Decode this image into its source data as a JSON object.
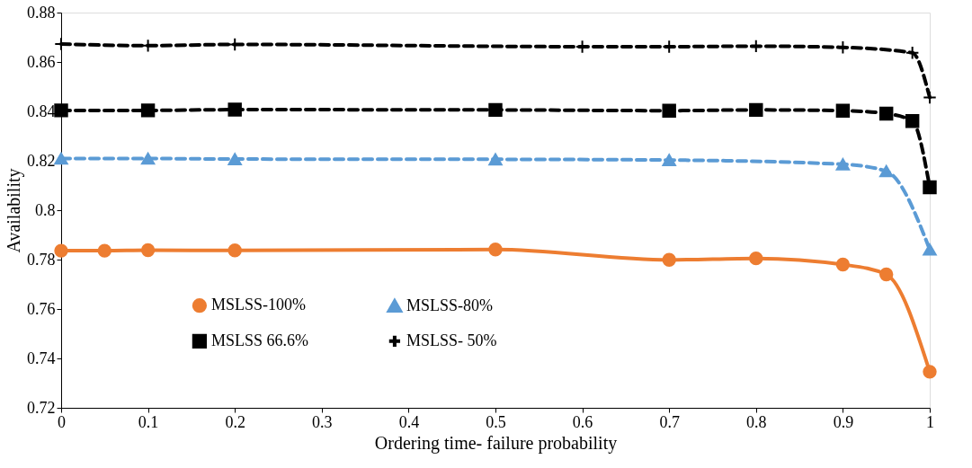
{
  "chart_data": {
    "type": "line",
    "xlabel": "Ordering time- failure probability",
    "ylabel": "Availability",
    "xlim": [
      0,
      1
    ],
    "xticks": [
      0,
      0.1,
      0.2,
      0.3,
      0.4,
      0.5,
      0.6,
      0.7,
      0.8,
      0.9,
      1
    ],
    "ylim": [
      0.72,
      0.88
    ],
    "yticks": [
      0.72,
      0.74,
      0.76,
      0.78,
      0.8,
      0.82,
      0.84,
      0.86,
      0.88
    ],
    "grid": false,
    "legend": "bottom",
    "series": [
      {
        "name": "MSLSS-100%",
        "color": "#ed7d31",
        "marker": "circle",
        "line_style": "solid",
        "x": [
          0,
          0.05,
          0.1,
          0.2,
          0.5,
          0.7,
          0.8,
          0.9,
          0.95,
          1
        ],
        "values": [
          0.7836,
          0.7836,
          0.7838,
          0.7837,
          0.7841,
          0.7799,
          0.7805,
          0.778,
          0.774,
          0.7346
        ]
      },
      {
        "name": "MSLSS-80%",
        "color": "#5b9bd5",
        "marker": "triangle",
        "line_style": "dashed",
        "x": [
          0,
          0.1,
          0.2,
          0.5,
          0.7,
          0.9,
          0.95,
          1
        ],
        "values": [
          0.8209,
          0.8209,
          0.8207,
          0.8206,
          0.8203,
          0.8186,
          0.8158,
          0.7841
        ]
      },
      {
        "name": "MSLSS 66.6%",
        "color": "#000000",
        "marker": "square",
        "line_style": "dashed",
        "x": [
          0,
          0.1,
          0.2,
          0.5,
          0.7,
          0.8,
          0.9,
          0.95,
          0.98,
          1
        ],
        "values": [
          0.8404,
          0.8404,
          0.8407,
          0.8406,
          0.8403,
          0.8406,
          0.8403,
          0.8391,
          0.8361,
          0.8093
        ]
      },
      {
        "name": "MSLSS- 50%",
        "color": "#000000",
        "marker": "cross",
        "line_style": "dashed",
        "x": [
          0,
          0.1,
          0.2,
          0.6,
          0.7,
          0.8,
          0.9,
          0.98,
          1
        ],
        "values": [
          0.8673,
          0.8666,
          0.8671,
          0.8662,
          0.8662,
          0.8664,
          0.8659,
          0.8637,
          0.8456
        ]
      }
    ]
  }
}
